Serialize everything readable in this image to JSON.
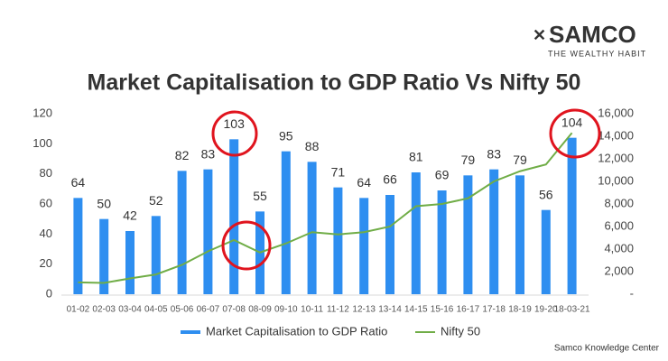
{
  "header": {
    "brand": "SAMCO",
    "tagline": "THE WEALTHY HABIT"
  },
  "footer": {
    "source": "Samco Knowledge Center"
  },
  "chart_data": {
    "type": "bar-line",
    "title": "Market Capitalisation to GDP Ratio Vs Nifty 50",
    "categories": [
      "01-02",
      "02-03",
      "03-04",
      "04-05",
      "05-06",
      "06-07",
      "07-08",
      "08-09",
      "09-10",
      "10-11",
      "11-12",
      "12-13",
      "13-14",
      "14-15",
      "15-16",
      "16-17",
      "17-18",
      "18-19",
      "19-20",
      "18-03-21"
    ],
    "series": [
      {
        "name": "Market Capitalisation to GDP Ratio",
        "type": "bar",
        "axis": "y",
        "color": "#2e8ef0",
        "values": [
          64,
          50,
          42,
          52,
          82,
          83,
          103,
          55,
          95,
          88,
          71,
          64,
          66,
          81,
          69,
          79,
          83,
          79,
          56,
          104
        ]
      },
      {
        "name": "Nifty 50",
        "type": "line",
        "axis": "y2",
        "color": "#70ad47",
        "values": [
          1050,
          1000,
          1400,
          1750,
          2600,
          3800,
          4800,
          3700,
          4500,
          5500,
          5300,
          5500,
          6000,
          7800,
          8000,
          8500,
          10000,
          10900,
          11500,
          14300
        ]
      }
    ],
    "ylim": [
      0,
      120
    ],
    "yticks": [
      0,
      20,
      40,
      60,
      80,
      100,
      120
    ],
    "y2lim": [
      0,
      16000
    ],
    "y2ticks": [
      {
        "value": 0,
        "label": "-"
      },
      {
        "value": 2000,
        "label": "2,000"
      },
      {
        "value": 4000,
        "label": "4,000"
      },
      {
        "value": 6000,
        "label": "6,000"
      },
      {
        "value": 8000,
        "label": "8,000"
      },
      {
        "value": 10000,
        "label": "10,000"
      },
      {
        "value": 12000,
        "label": "12,000"
      },
      {
        "value": 14000,
        "label": "14,000"
      },
      {
        "value": 16000,
        "label": "16,000"
      }
    ],
    "grid": false,
    "legend": "bottom"
  }
}
